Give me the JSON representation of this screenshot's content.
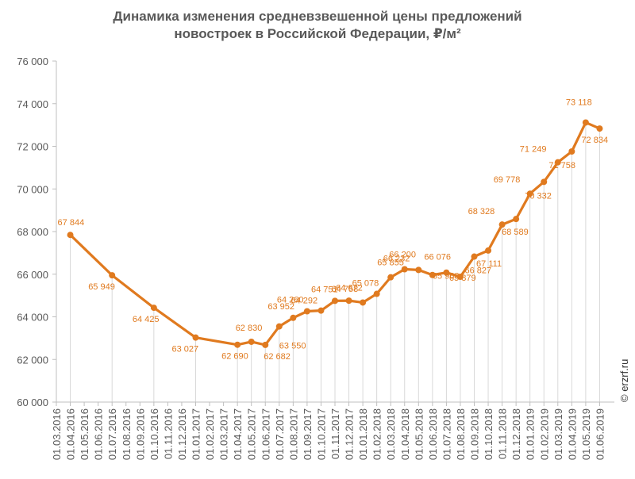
{
  "chart_data": {
    "type": "line",
    "title_line1": "Динамика изменения средневзвешенной цены предложений",
    "title_line2": "новостроек в Российской Федерации, ₽/м²",
    "credit": "© erzrf.ru",
    "ylim": [
      60000,
      76000
    ],
    "yticks": [
      "60 000",
      "62 000",
      "64 000",
      "66 000",
      "68 000",
      "70 000",
      "72 000",
      "74 000",
      "76 000"
    ],
    "ytick_values": [
      60000,
      62000,
      64000,
      66000,
      68000,
      70000,
      72000,
      74000,
      76000
    ],
    "categories": [
      "01.03.2016",
      "01.04.2016",
      "01.05.2016",
      "01.06.2016",
      "01.07.2016",
      "01.08.2016",
      "01.09.2016",
      "01.10.2016",
      "01.11.2016",
      "01.12.2016",
      "01.01.2017",
      "01.02.2017",
      "01.03.2017",
      "01.04.2017",
      "01.05.2017",
      "01.06.2017",
      "01.07.2017",
      "01.08.2017",
      "01.09.2017",
      "01.10.2017",
      "01.11.2017",
      "01.12.2017",
      "01.01.2018",
      "01.02.2018",
      "01.03.2018",
      "01.04.2018",
      "01.05.2018",
      "01.06.2018",
      "01.07.2018",
      "01.08.2018",
      "01.09.2018",
      "01.10.2018",
      "01.11.2018",
      "01.12.2018",
      "01.01.2019",
      "01.02.2019",
      "01.03.2019",
      "01.04.2019",
      "01.05.2019",
      "01.06.2019"
    ],
    "points": [
      {
        "date": "01.04.2016",
        "value": 67844,
        "label": "67 844"
      },
      {
        "date": "01.07.2016",
        "value": 65949,
        "label": "65 949"
      },
      {
        "date": "01.10.2016",
        "value": 64425,
        "label": "64 425"
      },
      {
        "date": "01.01.2017",
        "value": 63027,
        "label": "63 027"
      },
      {
        "date": "01.04.2017",
        "value": 62690,
        "label": "62 690"
      },
      {
        "date": "01.05.2017",
        "value": 62830,
        "label": "62 830"
      },
      {
        "date": "01.06.2017",
        "value": 62682,
        "label": "62 682"
      },
      {
        "date": "01.07.2017",
        "value": 63550,
        "label": "63 550"
      },
      {
        "date": "01.08.2017",
        "value": 63952,
        "label": "63 952"
      },
      {
        "date": "01.09.2017",
        "value": 64260,
        "label": "64 260"
      },
      {
        "date": "01.10.2017",
        "value": 64292,
        "label": "64 292"
      },
      {
        "date": "01.11.2017",
        "value": 64751,
        "label": "64 751"
      },
      {
        "date": "01.12.2017",
        "value": 64758,
        "label": "64 758"
      },
      {
        "date": "01.01.2018",
        "value": 64672,
        "label": "64 672"
      },
      {
        "date": "01.02.2018",
        "value": 65078,
        "label": "65 078"
      },
      {
        "date": "01.03.2018",
        "value": 65855,
        "label": "65 855"
      },
      {
        "date": "01.04.2018",
        "value": 66232,
        "label": "66 232"
      },
      {
        "date": "01.05.2018",
        "value": 66200,
        "label": "66 200"
      },
      {
        "date": "01.06.2018",
        "value": 65963,
        "label": "65 963"
      },
      {
        "date": "01.07.2018",
        "value": 66076,
        "label": "66 076"
      },
      {
        "date": "01.08.2018",
        "value": 65879,
        "label": "65 879"
      },
      {
        "date": "01.09.2018",
        "value": 66827,
        "label": "66 827"
      },
      {
        "date": "01.10.2018",
        "value": 67111,
        "label": "67 111"
      },
      {
        "date": "01.11.2018",
        "value": 68328,
        "label": "68 328"
      },
      {
        "date": "01.12.2018",
        "value": 68589,
        "label": "68 589"
      },
      {
        "date": "01.01.2019",
        "value": 69778,
        "label": "69 778"
      },
      {
        "date": "01.02.2019",
        "value": 70332,
        "label": "70 332"
      },
      {
        "date": "01.03.2019",
        "value": 71249,
        "label": "71 249"
      },
      {
        "date": "01.04.2019",
        "value": 71758,
        "label": "71 758"
      },
      {
        "date": "01.05.2019",
        "value": 73118,
        "label": "73 118"
      },
      {
        "date": "01.06.2019",
        "value": 72834,
        "label": "72 834"
      }
    ],
    "colors": {
      "line": "#E07A1F",
      "labels": "#E07A1F",
      "axis": "#BFBFBF",
      "dropline": "#D9D9D9"
    },
    "grid": false,
    "legend": "none"
  }
}
